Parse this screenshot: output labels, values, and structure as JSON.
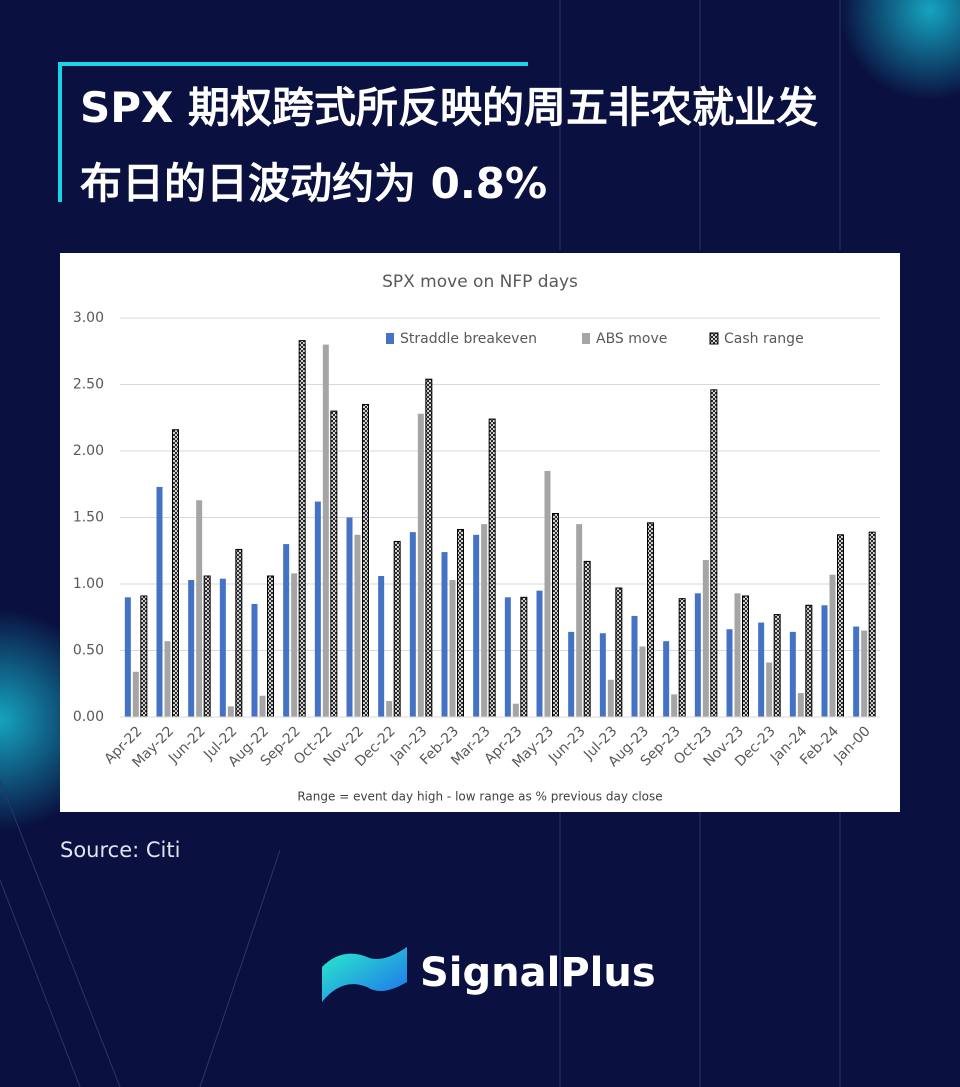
{
  "title_lines": [
    "SPX 期权跨式所反映的周五非农就业发",
    "布日的日波动约为 0.8%"
  ],
  "chart_data": {
    "type": "bar",
    "title": "SPX move on NFP days",
    "categories": [
      "Apr-22",
      "May-22",
      "Jun-22",
      "Jul-22",
      "Aug-22",
      "Sep-22",
      "Oct-22",
      "Nov-22",
      "Dec-22",
      "Jan-23",
      "Feb-23",
      "Mar-23",
      "Apr-23",
      "May-23",
      "Jun-23",
      "Jul-23",
      "Aug-23",
      "Sep-23",
      "Oct-23",
      "Nov-23",
      "Dec-23",
      "Jan-24",
      "Feb-24",
      "Jan-00"
    ],
    "series": [
      {
        "name": "Straddle breakeven",
        "color": "#4472c4",
        "values": [
          0.9,
          1.73,
          1.03,
          1.04,
          0.85,
          1.3,
          1.62,
          1.5,
          1.06,
          1.39,
          1.24,
          1.37,
          0.9,
          0.95,
          0.64,
          0.63,
          0.76,
          0.57,
          0.93,
          0.66,
          0.71,
          0.64,
          0.84,
          0.68
        ]
      },
      {
        "name": "ABS move",
        "color": "#a5a5a5",
        "values": [
          0.34,
          0.57,
          1.63,
          0.08,
          0.16,
          1.08,
          2.8,
          1.37,
          0.12,
          2.28,
          1.03,
          1.45,
          0.1,
          1.85,
          1.45,
          0.28,
          0.53,
          0.17,
          1.18,
          0.93,
          0.41,
          0.18,
          1.07,
          0.65
        ]
      },
      {
        "name": "Cash range",
        "color": "#000000",
        "values": [
          0.91,
          2.16,
          1.06,
          1.26,
          1.06,
          2.83,
          2.3,
          2.35,
          1.32,
          2.54,
          1.41,
          2.24,
          0.9,
          1.53,
          1.17,
          0.97,
          1.46,
          0.89,
          2.46,
          0.91,
          0.77,
          0.84,
          1.37,
          1.39
        ]
      }
    ],
    "ylim": [
      0,
      3
    ],
    "yticks": [
      {
        "value": 0,
        "label": "0.00"
      },
      {
        "value": 0.5,
        "label": "0.50"
      },
      {
        "value": 1,
        "label": "1.00"
      },
      {
        "value": 1.5,
        "label": "1.50"
      },
      {
        "value": 2,
        "label": "2.00"
      },
      {
        "value": 2.5,
        "label": "2.50"
      },
      {
        "value": 3,
        "label": "3.00"
      }
    ],
    "grid": true,
    "footnote": "Range = event day high - low range as % previous day close"
  },
  "source": "Source: Citi",
  "brand": "SignalPlus"
}
